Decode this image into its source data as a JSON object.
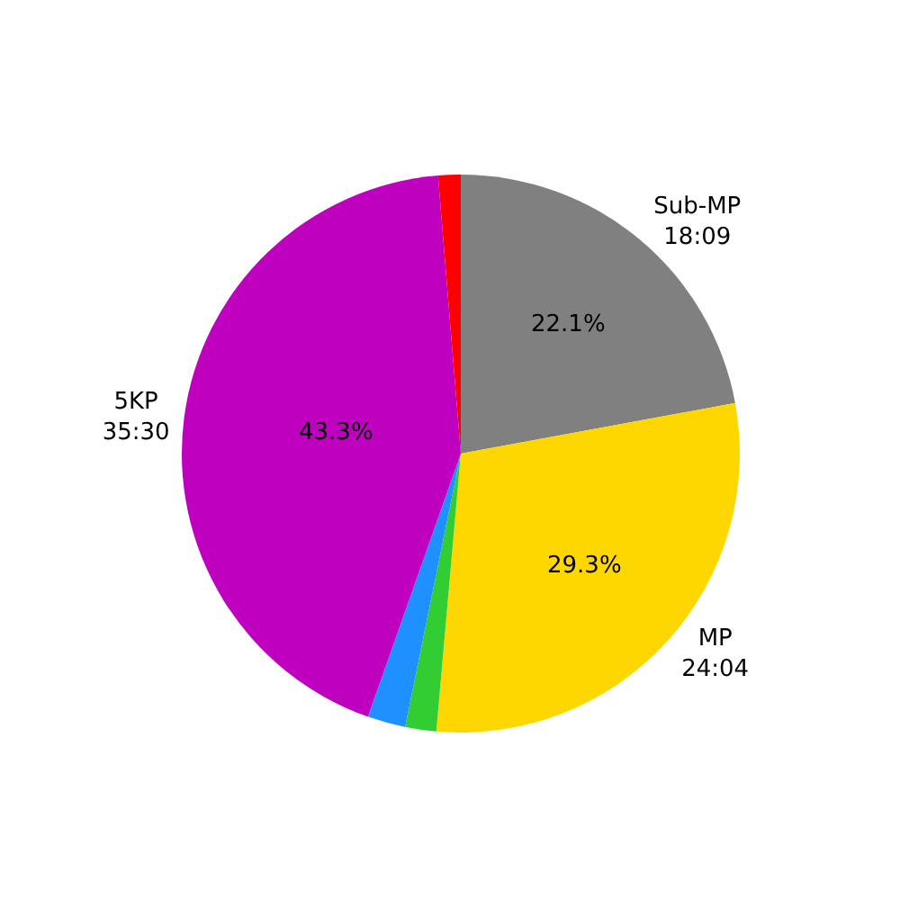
{
  "chart_data": {
    "type": "pie",
    "categories": [
      "Sub-MP\n18:09",
      "MP\n24:04",
      null,
      null,
      "5KP\n35:30",
      null
    ],
    "values": [
      22.1,
      29.3,
      1.8,
      2.2,
      43.3,
      1.3
    ],
    "colors": [
      "#808080",
      "#ffd700",
      "#32cd32",
      "#1e90ff",
      "#bf00bf",
      "#ff0000"
    ],
    "value_labels": [
      "22.1%",
      "29.3%",
      null,
      null,
      "43.3%",
      null
    ],
    "legend": false
  }
}
